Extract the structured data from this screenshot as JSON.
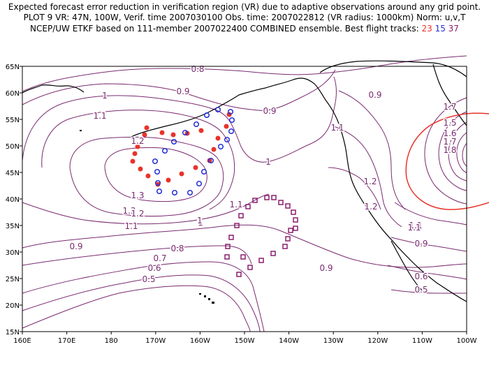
{
  "header": {
    "line1": "Expected forecast error reduction in verification region (VR) due to adaptive observations around any grid point.",
    "line2": "PLOT 9 VR: 47N, 100W, Verif. time 2007030100 Obs. time: 2007022812 (VR radius: 1000km) Norm: u,v,T",
    "line3_prefix": "NCEP/UW ETKF based on 111-member 2007022400 COMBINED ensemble.  Best flight tracks:",
    "track_red": "23",
    "track_blue": "15",
    "track_purple": "37"
  },
  "map": {
    "lat_labels": [
      "65N",
      "60N",
      "55N",
      "50N",
      "45N",
      "40N",
      "35N",
      "30N",
      "25N",
      "20N",
      "15N"
    ],
    "lon_labels": [
      "160E",
      "170E",
      "180",
      "170W",
      "160W",
      "150W",
      "140W",
      "130W",
      "120W",
      "110W",
      "100W"
    ],
    "contour_labels": [
      "0.8",
      "0.9",
      "1",
      "1.1",
      "1.2",
      "1.3",
      "0.9",
      "1",
      "0.9",
      "1.1",
      "1.7",
      "1.5",
      "1.6",
      "1.7",
      "1.8",
      "1.1",
      "1",
      "1.2",
      "1.3",
      "1.2",
      "1.1",
      "1",
      "0.9",
      "0.8",
      "0.7",
      "0.6",
      "0.5",
      "1.1",
      "1.2",
      "1.1",
      "1",
      "0.9",
      "0.9",
      "0.6",
      "0.5"
    ],
    "line_color": "#7a2a70",
    "coast_color": "#000000",
    "vr_circle_color": "#e8332a",
    "red_track_color": "#e8332a",
    "blue_track_color": "#2430d8",
    "purple_track_color": "#8a1f6f"
  }
}
